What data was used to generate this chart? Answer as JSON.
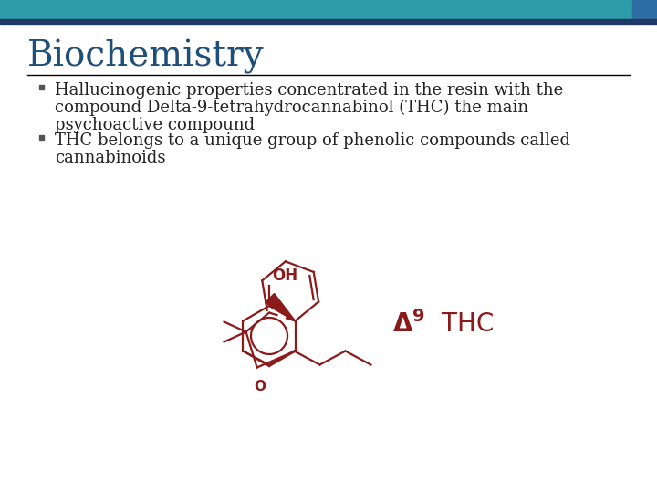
{
  "title": "Biochemistry",
  "title_color": "#1F4E79",
  "title_fontsize": 28,
  "header_bar_color1": "#2E9CA6",
  "header_bar_color2": "#1F3864",
  "header_bar_color3": "#2E6DA4",
  "bullet1_line1": "Hallucinogenic properties concentrated in the resin with the",
  "bullet1_line2": "compound Delta-9-tetrahydrocannabinol (THC) the main",
  "bullet1_line3": "psychoactive compound",
  "bullet2_line1": "THC belongs to a unique group of phenolic compounds called",
  "bullet2_line2": "cannabinoids",
  "text_color": "#222222",
  "bullet_color": "#555555",
  "body_fontsize": 13,
  "bg_color": "#FFFFFF",
  "divider_color": "#000000",
  "thc_color": "#8B1A1A",
  "molecule_color": "#8B1A1A"
}
